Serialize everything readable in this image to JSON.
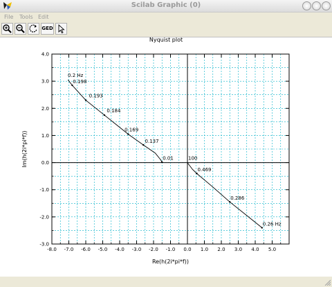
{
  "window": {
    "title": "Scilab Graphic (0)"
  },
  "menu": [
    "File",
    "Tools",
    "Edit"
  ],
  "toolbar": {
    "buttons": [
      {
        "name": "zoom-in-icon"
      },
      {
        "name": "zoom-out-icon"
      },
      {
        "name": "rotate-icon"
      },
      {
        "name": "geo-button",
        "label": "GED"
      },
      {
        "name": "pointer-icon"
      }
    ]
  },
  "colors": {
    "grid": "#00b0c8",
    "curve": "#000000"
  },
  "chart_data": {
    "type": "line",
    "title": "Nyquist plot",
    "xlabel": "Re(h(2i*pi*f))",
    "ylabel": "Im(h(2i*pi*f))",
    "xlim": [
      -8.0,
      6.0
    ],
    "ylim": [
      -3.0,
      4.0
    ],
    "grid": true,
    "x_ticks": [
      "-8.0",
      "-7.0",
      "-6.0",
      "-5.0",
      "-4.0",
      "-3.0",
      "-2.0",
      "-1.0",
      "0.0",
      "1.0",
      "2.0",
      "3.0",
      "4.0",
      "5.0"
    ],
    "y_ticks": [
      "4.0",
      "3.0",
      "2.0",
      "1.0",
      "0.0",
      "-1.0",
      "-2.0",
      "-3.0"
    ],
    "x_tick_values": [
      -8,
      -7,
      -6,
      -5,
      -4,
      -3,
      -2,
      -1,
      0,
      1,
      2,
      3,
      4,
      5
    ],
    "y_tick_values": [
      4,
      3,
      2,
      1,
      0,
      -1,
      -2,
      -3
    ],
    "series": [
      {
        "points": [
          {
            "x": -7.05,
            "y": 3.05
          },
          {
            "x": -6.8,
            "y": 2.85
          },
          {
            "x": -6.0,
            "y": 2.3
          },
          {
            "x": -4.9,
            "y": 1.75
          },
          {
            "x": -4.2,
            "y": 1.4
          },
          {
            "x": -3.5,
            "y": 1.05
          },
          {
            "x": -2.6,
            "y": 0.65
          },
          {
            "x": -1.9,
            "y": 0.35
          },
          {
            "x": -1.6,
            "y": 0.12
          },
          {
            "x": -1.5,
            "y": 0.02
          }
        ]
      },
      {
        "points": [
          {
            "x": 0.02,
            "y": -0.02
          },
          {
            "x": 0.3,
            "y": -0.25
          },
          {
            "x": 0.55,
            "y": -0.4
          },
          {
            "x": 1.5,
            "y": -0.9
          },
          {
            "x": 2.5,
            "y": -1.45
          },
          {
            "x": 3.5,
            "y": -1.95
          },
          {
            "x": 4.4,
            "y": -2.4
          }
        ]
      }
    ],
    "markers": [
      {
        "x": -6.8,
        "y": 2.85
      },
      {
        "x": -6.0,
        "y": 2.3
      },
      {
        "x": -4.9,
        "y": 1.75
      },
      {
        "x": -3.5,
        "y": 1.05
      },
      {
        "x": -2.6,
        "y": 0.65
      },
      {
        "x": -1.5,
        "y": 0.02
      },
      {
        "x": 0.55,
        "y": -0.4
      },
      {
        "x": 2.5,
        "y": -1.45
      },
      {
        "x": 4.4,
        "y": -2.4
      }
    ],
    "annotations": [
      {
        "text": "0.2 Hz",
        "x": -7.1,
        "y": 3.1
      },
      {
        "text": "0.198",
        "x": -6.8,
        "y": 2.88
      },
      {
        "text": "0.193",
        "x": -5.85,
        "y": 2.35
      },
      {
        "text": "0.184",
        "x": -4.8,
        "y": 1.8
      },
      {
        "text": "0.169",
        "x": -3.75,
        "y": 1.1
      },
      {
        "text": "0.137",
        "x": -2.55,
        "y": 0.68
      },
      {
        "text": "0.01",
        "x": -1.5,
        "y": 0.05
      },
      {
        "text": "100",
        "x": 0.0,
        "y": 0.05
      },
      {
        "text": "0.469",
        "x": 0.55,
        "y": -0.37
      },
      {
        "text": "0.286",
        "x": 2.5,
        "y": -1.42
      },
      {
        "text": "0.26 Hz",
        "x": 4.4,
        "y": -2.37
      }
    ]
  }
}
